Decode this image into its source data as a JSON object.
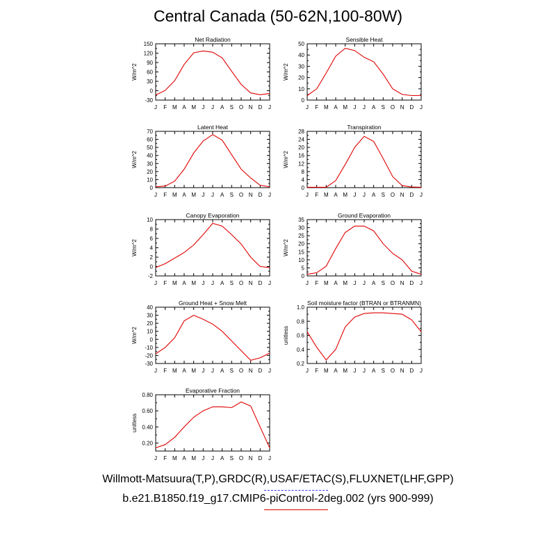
{
  "title": "Central Canada (50-62N,100-80W)",
  "legend": {
    "obs_label": "Willmott-Matsuura(T,P),GRDC(R),USAF/ETAC(S),FLUXNET(LHF,GPP)",
    "model_label": "b.e21.B1850.f19_g17.CMIP6-piControl-2deg.002 (yrs 900-999)",
    "obs_color": "#3a3aff",
    "model_color": "#e00000"
  },
  "months": [
    "J",
    "F",
    "M",
    "A",
    "M",
    "J",
    "J",
    "A",
    "S",
    "O",
    "N",
    "D",
    "J"
  ],
  "chart_data": [
    {
      "type": "line",
      "title": "Net Radiation",
      "ylabel": "W/m^2",
      "ylim": [
        -30,
        150
      ],
      "yticks": [
        "150",
        "120",
        "90",
        "60",
        "30",
        "0",
        "-30"
      ],
      "series": [
        {
          "color": "#e00000",
          "values": [
            -14,
            1,
            32,
            84,
            121,
            127,
            123,
            105,
            62,
            20,
            -7,
            -13,
            -9
          ]
        }
      ]
    },
    {
      "type": "line",
      "title": "Sensible Heat",
      "ylabel": "W/m^2",
      "ylim": [
        0,
        50
      ],
      "yticks": [
        "50",
        "40",
        "30",
        "20",
        "10",
        "0"
      ],
      "series": [
        {
          "color": "#e00000",
          "values": [
            4,
            10,
            24,
            39,
            46,
            44,
            38,
            34,
            23,
            10,
            5,
            4,
            4
          ]
        }
      ]
    },
    {
      "type": "line",
      "title": "Latent Heat",
      "ylabel": "W/m^2",
      "ylim": [
        0,
        70
      ],
      "yticks": [
        "70",
        "60",
        "50",
        "40",
        "30",
        "20",
        "10",
        "0"
      ],
      "series": [
        {
          "color": "#e00000",
          "values": [
            1,
            2,
            8,
            23,
            43,
            58,
            66,
            59,
            41,
            23,
            12,
            3,
            1
          ]
        }
      ]
    },
    {
      "type": "line",
      "title": "Transpiration",
      "ylabel": "W/m^2",
      "ylim": [
        0,
        28
      ],
      "yticks": [
        "28",
        "24",
        "20",
        "16",
        "12",
        "8",
        "4",
        "0"
      ],
      "series": [
        {
          "color": "#e00000",
          "values": [
            0.2,
            0.2,
            0.2,
            3.5,
            11.5,
            20,
            25.5,
            23,
            14.5,
            5.5,
            1,
            0.3,
            0.2
          ]
        }
      ]
    },
    {
      "type": "line",
      "title": "Canopy Evaporation",
      "ylabel": "W/m^2",
      "ylim": [
        -2,
        10
      ],
      "yticks": [
        "10",
        "8",
        "6",
        "4",
        "2",
        "0",
        "-2"
      ],
      "series": [
        {
          "color": "#e00000",
          "values": [
            -0.2,
            0.6,
            1.8,
            3.0,
            4.6,
            6.8,
            9.2,
            8.6,
            6.8,
            4.8,
            2.0,
            0.0,
            -0.2
          ]
        }
      ]
    },
    {
      "type": "line",
      "title": "Ground Evaporation",
      "ylabel": "W/m^2",
      "ylim": [
        0,
        35
      ],
      "yticks": [
        "35",
        "30",
        "25",
        "20",
        "15",
        "10",
        "5",
        "0"
      ],
      "series": [
        {
          "color": "#e00000",
          "values": [
            1,
            2,
            6,
            17,
            27,
            31,
            31,
            28,
            20,
            14,
            10,
            3,
            1
          ]
        }
      ]
    },
    {
      "type": "line",
      "title": "Ground Heat + Snow Melt",
      "ylabel": "W/m^2",
      "ylim": [
        -30,
        40
      ],
      "yticks": [
        "40",
        "30",
        "20",
        "10",
        "0",
        "-10",
        "-20",
        "-30"
      ],
      "series": [
        {
          "color": "#e00000",
          "values": [
            -18,
            -10,
            2,
            23,
            30,
            25,
            19,
            10,
            -2,
            -14,
            -26,
            -23,
            -17
          ]
        }
      ]
    },
    {
      "type": "line",
      "title": "Soil moisture factor (BTRAN or BTRANMN)",
      "ylabel": "unitless",
      "ylim": [
        0.2,
        1.0
      ],
      "yticks": [
        "1.0",
        "0.8",
        "0.6",
        "0.4",
        "0.2"
      ],
      "series": [
        {
          "color": "#e00000",
          "values": [
            0.65,
            0.43,
            0.25,
            0.4,
            0.72,
            0.86,
            0.91,
            0.92,
            0.92,
            0.91,
            0.9,
            0.82,
            0.65
          ]
        }
      ]
    },
    {
      "type": "line",
      "title": "Evaporative Fraction",
      "ylabel": "unitless",
      "ylim": [
        0.1,
        0.8
      ],
      "yticks": [
        "0.80",
        "0.60",
        "0.40",
        "0.20"
      ],
      "series": [
        {
          "color": "#e00000",
          "values": [
            0.14,
            0.18,
            0.27,
            0.4,
            0.52,
            0.6,
            0.65,
            0.65,
            0.64,
            0.71,
            0.66,
            0.4,
            0.14
          ]
        }
      ]
    }
  ]
}
